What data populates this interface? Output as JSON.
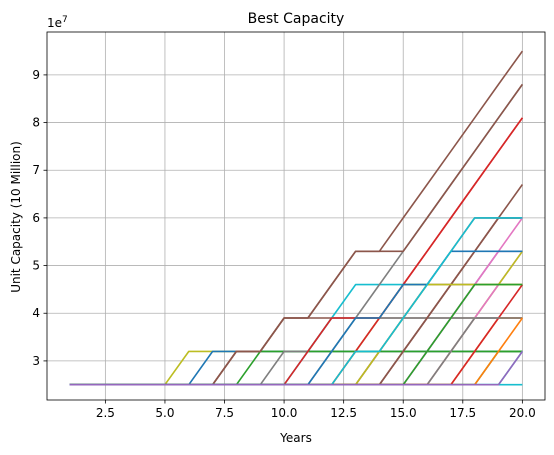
{
  "chart_data": {
    "type": "line",
    "title": "Best Capacity",
    "xlabel": "Years",
    "ylabel": "Unit Capacity (10 Million)",
    "y_multiplier": "1e7",
    "xlim": [
      0.05,
      20.95
    ],
    "ylim": [
      2.18,
      9.9
    ],
    "x_ticks": [
      2.5,
      5.0,
      7.5,
      10.0,
      12.5,
      15.0,
      17.5,
      20.0
    ],
    "x_tick_labels": [
      "2.5",
      "5.0",
      "7.5",
      "10.0",
      "12.5",
      "15.0",
      "17.5",
      "20.0"
    ],
    "y_ticks": [
      3,
      4,
      5,
      6,
      7,
      8,
      9
    ],
    "y_tick_labels": [
      "3",
      "4",
      "5",
      "6",
      "7",
      "8",
      "9"
    ],
    "grid": true,
    "levels": [
      2.5,
      3.2,
      3.9,
      4.6,
      5.3,
      6.0,
      6.7,
      7.4,
      8.1,
      8.8,
      9.5
    ],
    "colors": [
      "#1f77b4",
      "#ff7f0e",
      "#2ca02c",
      "#d62728",
      "#9467bd",
      "#8c564b",
      "#e377c2",
      "#7f7f7f",
      "#bcbd22",
      "#17becf"
    ],
    "series": [
      {
        "x": [
          1,
          20
        ],
        "y": [
          2.5,
          2.5
        ],
        "color": "#17becf"
      },
      {
        "x": [
          1,
          5,
          6,
          20
        ],
        "y": [
          2.5,
          2.5,
          3.2,
          3.2
        ],
        "color": "#bcbd22"
      },
      {
        "x": [
          1,
          6,
          7,
          20
        ],
        "y": [
          2.5,
          2.5,
          3.2,
          3.2
        ],
        "color": "#1f77b4"
      },
      {
        "x": [
          1,
          7,
          8,
          9,
          10,
          20
        ],
        "y": [
          2.5,
          2.5,
          3.2,
          3.2,
          3.9,
          3.9
        ],
        "color": "#8c564b"
      },
      {
        "x": [
          1,
          8,
          9,
          20
        ],
        "y": [
          2.5,
          2.5,
          3.2,
          3.2
        ],
        "color": "#2ca02c"
      },
      {
        "x": [
          1,
          9,
          10,
          11,
          12,
          20
        ],
        "y": [
          2.5,
          2.5,
          3.2,
          3.2,
          3.9,
          3.9
        ],
        "color": "#7f7f7f"
      },
      {
        "x": [
          1,
          10,
          11,
          12,
          13,
          20
        ],
        "y": [
          2.5,
          2.5,
          3.2,
          3.9,
          4.6,
          4.6
        ],
        "color": "#17becf"
      },
      {
        "x": [
          1,
          11,
          12,
          13,
          14,
          15,
          16,
          17,
          18,
          19,
          20
        ],
        "y": [
          2.5,
          2.5,
          3.2,
          3.9,
          4.6,
          5.3,
          6.0,
          6.7,
          7.4,
          8.1,
          8.8
        ],
        "color": "#7f7f7f"
      },
      {
        "x": [
          1,
          12,
          13,
          14,
          15,
          20
        ],
        "y": [
          2.5,
          2.5,
          3.2,
          3.9,
          4.6,
          4.6
        ],
        "color": "#bcbd22"
      },
      {
        "x": [
          1,
          13,
          14,
          15,
          16,
          20
        ],
        "y": [
          2.5,
          2.5,
          3.2,
          3.9,
          4.6,
          4.6
        ],
        "color": "#e377c2"
      },
      {
        "x": [
          1,
          14,
          15,
          16,
          17,
          18,
          19,
          20
        ],
        "y": [
          2.5,
          2.5,
          3.2,
          3.9,
          4.6,
          5.3,
          6.0,
          6.0
        ],
        "color": "#d62728"
      },
      {
        "x": [
          1,
          15,
          16,
          17,
          18,
          19,
          20
        ],
        "y": [
          2.5,
          2.5,
          3.2,
          3.9,
          4.6,
          5.3,
          5.3
        ],
        "color": "#9467bd"
      },
      {
        "x": [
          1,
          16,
          17,
          18,
          19,
          20
        ],
        "y": [
          2.5,
          2.5,
          3.2,
          3.9,
          4.6,
          4.6
        ],
        "color": "#bcbd22"
      },
      {
        "x": [
          1,
          17,
          18,
          19,
          20
        ],
        "y": [
          2.5,
          2.5,
          3.2,
          3.9,
          3.9
        ],
        "color": "#ff7f0e"
      },
      {
        "x": [
          1,
          18,
          19,
          20
        ],
        "y": [
          2.5,
          2.5,
          3.2,
          3.2
        ],
        "color": "#2ca02c"
      },
      {
        "x": [
          1,
          19,
          20
        ],
        "y": [
          2.5,
          2.5,
          3.2
        ],
        "color": "#17becf"
      },
      {
        "x": [
          1,
          7,
          8,
          9,
          10,
          11,
          12,
          13,
          14,
          15,
          16,
          17,
          18,
          19,
          20
        ],
        "y": [
          2.5,
          2.5,
          3.2,
          3.2,
          3.9,
          3.9,
          4.6,
          5.3,
          5.3,
          5.3,
          6.0,
          6.7,
          7.4,
          8.1,
          8.8
        ],
        "color": "#8c564b"
      },
      {
        "x": [
          1,
          7,
          8,
          9,
          10,
          11,
          12,
          13,
          14,
          15,
          16,
          17,
          18,
          19,
          20
        ],
        "y": [
          2.5,
          2.5,
          3.2,
          3.2,
          3.9,
          3.9,
          4.6,
          5.3,
          5.3,
          6.0,
          6.7,
          7.4,
          8.1,
          8.8,
          9.5
        ],
        "color": "#8c564b"
      },
      {
        "x": [
          1,
          12,
          13,
          14,
          15,
          16,
          17,
          18,
          19,
          20
        ],
        "y": [
          2.5,
          2.5,
          3.2,
          3.9,
          4.6,
          5.3,
          6.0,
          6.7,
          7.4,
          8.1
        ],
        "color": "#d62728"
      },
      {
        "x": [
          1,
          10,
          11,
          12,
          13,
          14,
          15,
          16,
          17,
          18,
          19,
          20
        ],
        "y": [
          2.5,
          2.5,
          3.2,
          3.9,
          3.9,
          3.9,
          4.6,
          5.3,
          6.0,
          6.7,
          7.4,
          8.1
        ],
        "color": "#d62728"
      },
      {
        "x": [
          1,
          13,
          14,
          15,
          16,
          17,
          18,
          19,
          20
        ],
        "y": [
          2.5,
          2.5,
          3.2,
          3.9,
          4.6,
          5.3,
          6.0,
          6.0,
          6.0
        ],
        "color": "#8c564b"
      },
      {
        "x": [
          1,
          14,
          15,
          16,
          17,
          18,
          19,
          20
        ],
        "y": [
          2.5,
          2.5,
          3.2,
          3.9,
          4.6,
          5.3,
          6.0,
          6.0
        ],
        "color": "#7f7f7f"
      },
      {
        "x": [
          1,
          16,
          17,
          18,
          19,
          20
        ],
        "y": [
          2.5,
          2.5,
          3.2,
          3.9,
          4.6,
          5.3
        ],
        "color": "#e377c2"
      },
      {
        "x": [
          1,
          15,
          16,
          17,
          18,
          19,
          20
        ],
        "y": [
          2.5,
          2.5,
          3.2,
          3.9,
          4.6,
          5.3,
          6.0
        ],
        "color": "#e377c2"
      },
      {
        "x": [
          1,
          17,
          18,
          19,
          20
        ],
        "y": [
          2.5,
          2.5,
          3.2,
          3.9,
          4.6
        ],
        "color": "#d62728"
      },
      {
        "x": [
          1,
          14,
          15,
          16,
          17,
          18,
          19,
          20
        ],
        "y": [
          2.5,
          2.5,
          3.2,
          3.9,
          4.6,
          5.3,
          6.0,
          6.7
        ],
        "color": "#8c564b"
      },
      {
        "x": [
          1,
          13,
          14,
          15,
          16,
          17,
          18,
          19,
          20
        ],
        "y": [
          2.5,
          2.5,
          3.2,
          3.9,
          4.6,
          4.6,
          4.6,
          4.6,
          5.3
        ],
        "color": "#bcbd22"
      },
      {
        "x": [
          1,
          16,
          17,
          18,
          19,
          20
        ],
        "y": [
          2.5,
          2.5,
          3.2,
          3.9,
          3.9,
          3.9
        ],
        "color": "#7f7f7f"
      },
      {
        "x": [
          1,
          18,
          19,
          20
        ],
        "y": [
          2.5,
          2.5,
          3.2,
          3.9
        ],
        "color": "#ff7f0e"
      },
      {
        "x": [
          1,
          15,
          16,
          17,
          18,
          19,
          20
        ],
        "y": [
          2.5,
          2.5,
          3.2,
          3.9,
          4.6,
          4.6,
          4.6
        ],
        "color": "#2ca02c"
      },
      {
        "x": [
          1,
          11,
          12,
          13,
          14,
          15,
          16,
          17,
          18,
          19,
          20
        ],
        "y": [
          2.5,
          2.5,
          3.2,
          3.9,
          3.9,
          4.6,
          4.6,
          5.3,
          5.3,
          5.3,
          5.3
        ],
        "color": "#1f77b4"
      },
      {
        "x": [
          1,
          12,
          13,
          14,
          15,
          16,
          17,
          18,
          19,
          20
        ],
        "y": [
          2.5,
          2.5,
          3.2,
          3.2,
          3.9,
          4.6,
          5.3,
          6.0,
          6.0,
          6.0
        ],
        "color": "#17becf"
      },
      {
        "x": [
          1,
          19,
          20
        ],
        "y": [
          2.5,
          2.5,
          3.2
        ],
        "color": "#9467bd"
      }
    ]
  }
}
